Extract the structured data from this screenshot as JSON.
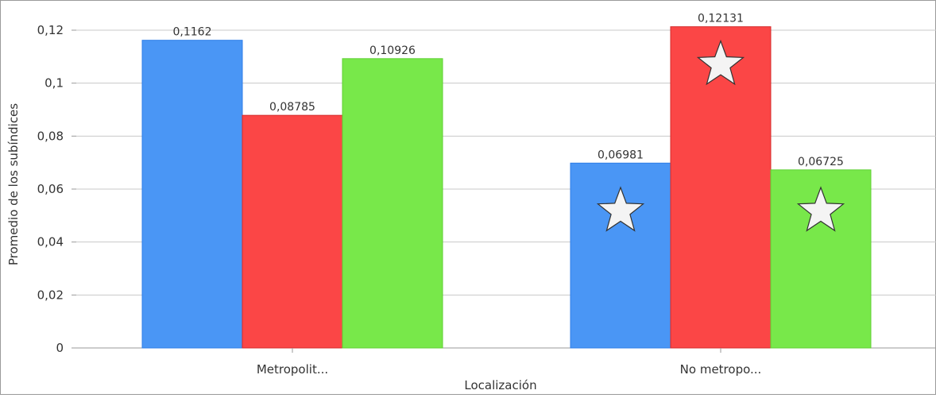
{
  "chart_data": {
    "type": "bar",
    "title": "",
    "xlabel": "Localización",
    "ylabel": "Promedio de los subíndices",
    "categories": [
      "Metropolit...",
      "No metropo..."
    ],
    "series": [
      {
        "values": [
          0.1162,
          0.06981
        ],
        "labels": [
          "0,1162",
          "0,06981"
        ],
        "color": "#4a96f5",
        "stroke": "#2f7ee8",
        "starred": [
          false,
          true
        ]
      },
      {
        "values": [
          0.08785,
          0.12131
        ],
        "labels": [
          "0,08785",
          "0,12131"
        ],
        "color": "#fb4646",
        "stroke": "#d42b2b",
        "starred": [
          false,
          true
        ]
      },
      {
        "values": [
          0.10926,
          0.06725
        ],
        "labels": [
          "0,10926",
          "0,06725"
        ],
        "color": "#78e84a",
        "stroke": "#5fcf33",
        "starred": [
          false,
          true
        ]
      }
    ],
    "ylim": [
      0,
      0.13
    ],
    "yticks": [
      0,
      0.02,
      0.04,
      0.06,
      0.08,
      0.1,
      0.12
    ],
    "yticklabels": [
      "0",
      "0,02",
      "0,04",
      "0,06",
      "0,08",
      "0,1",
      "0,12"
    ],
    "grid": true,
    "legend": "none"
  }
}
